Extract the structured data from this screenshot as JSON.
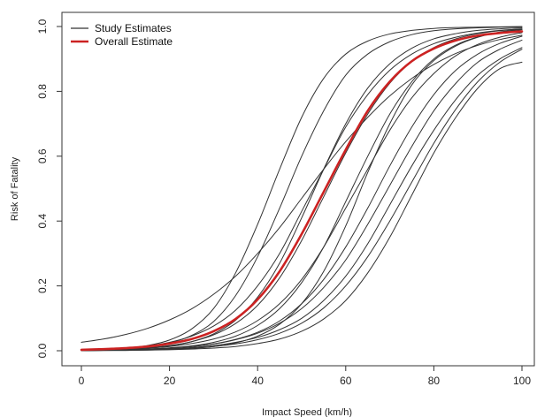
{
  "chart_data": {
    "type": "line",
    "title": "",
    "xlabel": "Impact Speed (km/h)",
    "ylabel": "Risk of Fatality",
    "xlim": [
      0,
      100
    ],
    "ylim": [
      0,
      1
    ],
    "x_ticks": [
      0,
      20,
      40,
      60,
      80,
      100
    ],
    "y_ticks": [
      0.0,
      0.2,
      0.4,
      0.6,
      0.8,
      1.0
    ],
    "x_tick_labels": [
      "0",
      "20",
      "40",
      "60",
      "80",
      "100"
    ],
    "y_tick_labels": [
      "0.0",
      "0.2",
      "0.4",
      "0.6",
      "0.8",
      "1.0"
    ],
    "grid": false,
    "legend": {
      "position": "top-left",
      "entries": [
        {
          "label": "Study Estimates",
          "color": "#333333"
        },
        {
          "label": "Overall Estimate",
          "color": "#cc2222"
        }
      ]
    },
    "x": [
      0,
      5,
      10,
      15,
      20,
      25,
      30,
      35,
      40,
      45,
      50,
      55,
      60,
      65,
      70,
      75,
      80,
      85,
      90,
      95,
      100
    ],
    "series": [
      {
        "values": [
          0.026,
          0.036,
          0.05,
          0.069,
          0.095,
          0.129,
          0.174,
          0.23,
          0.3,
          0.38,
          0.47,
          0.56,
          0.645,
          0.72,
          0.786,
          0.84,
          0.883,
          0.917,
          0.942,
          0.96,
          0.973
        ],
        "color": "#333333",
        "width": 1.0
      },
      {
        "values": [
          0.002,
          0.004,
          0.008,
          0.016,
          0.033,
          0.067,
          0.13,
          0.24,
          0.39,
          0.56,
          0.72,
          0.84,
          0.915,
          0.955,
          0.977,
          0.988,
          0.994,
          0.997,
          0.998,
          0.999,
          1.0
        ],
        "color": "#333333",
        "width": 1.0
      },
      {
        "values": [
          0.002,
          0.003,
          0.006,
          0.012,
          0.024,
          0.047,
          0.09,
          0.17,
          0.29,
          0.44,
          0.6,
          0.74,
          0.85,
          0.915,
          0.953,
          0.975,
          0.987,
          0.993,
          0.996,
          0.998,
          0.999
        ],
        "color": "#333333",
        "width": 1.0
      },
      {
        "values": [
          0.003,
          0.005,
          0.009,
          0.015,
          0.026,
          0.045,
          0.076,
          0.125,
          0.2,
          0.3,
          0.43,
          0.56,
          0.69,
          0.79,
          0.865,
          0.915,
          0.947,
          0.967,
          0.98,
          0.988,
          0.992
        ],
        "color": "#333333",
        "width": 1.0
      },
      {
        "values": [
          0.001,
          0.002,
          0.004,
          0.008,
          0.015,
          0.028,
          0.052,
          0.094,
          0.165,
          0.27,
          0.41,
          0.56,
          0.7,
          0.81,
          0.885,
          0.933,
          0.962,
          0.978,
          0.988,
          0.993,
          0.996
        ],
        "color": "#333333",
        "width": 1.0
      },
      {
        "values": [
          0.002,
          0.003,
          0.005,
          0.008,
          0.013,
          0.022,
          0.036,
          0.058,
          0.093,
          0.145,
          0.22,
          0.32,
          0.44,
          0.56,
          0.68,
          0.78,
          0.855,
          0.91,
          0.945,
          0.967,
          0.981
        ],
        "color": "#333333",
        "width": 1.0
      },
      {
        "values": [
          0.001,
          0.002,
          0.003,
          0.005,
          0.009,
          0.015,
          0.026,
          0.045,
          0.078,
          0.13,
          0.21,
          0.32,
          0.46,
          0.6,
          0.73,
          0.83,
          0.9,
          0.943,
          0.968,
          0.983,
          0.991
        ],
        "color": "#333333",
        "width": 1.0
      },
      {
        "values": [
          0.0,
          0.001,
          0.001,
          0.002,
          0.004,
          0.007,
          0.013,
          0.024,
          0.045,
          0.082,
          0.145,
          0.245,
          0.385,
          0.55,
          0.7,
          0.82,
          0.895,
          0.94,
          0.967,
          0.982,
          0.99
        ],
        "color": "#333333",
        "width": 1.0
      },
      {
        "values": [
          0.001,
          0.002,
          0.003,
          0.005,
          0.008,
          0.013,
          0.021,
          0.034,
          0.054,
          0.085,
          0.13,
          0.195,
          0.28,
          0.39,
          0.51,
          0.63,
          0.74,
          0.825,
          0.89,
          0.93,
          0.958
        ],
        "color": "#333333",
        "width": 1.0
      },
      {
        "values": [
          0.001,
          0.002,
          0.003,
          0.005,
          0.008,
          0.013,
          0.021,
          0.035,
          0.057,
          0.092,
          0.145,
          0.22,
          0.32,
          0.44,
          0.57,
          0.69,
          0.79,
          0.865,
          0.915,
          0.948,
          0.97
        ],
        "color": "#333333",
        "width": 1.0
      },
      {
        "values": [
          0.001,
          0.002,
          0.003,
          0.004,
          0.006,
          0.01,
          0.016,
          0.026,
          0.041,
          0.065,
          0.1,
          0.155,
          0.23,
          0.33,
          0.45,
          0.57,
          0.68,
          0.775,
          0.85,
          0.9,
          0.935
        ],
        "color": "#333333",
        "width": 1.0
      },
      {
        "values": [
          0.0,
          0.001,
          0.002,
          0.003,
          0.005,
          0.008,
          0.013,
          0.021,
          0.034,
          0.054,
          0.085,
          0.132,
          0.2,
          0.29,
          0.4,
          0.52,
          0.64,
          0.745,
          0.83,
          0.89,
          0.93
        ],
        "color": "#333333",
        "width": 1.0
      },
      {
        "values": [
          0.0,
          0.001,
          0.001,
          0.002,
          0.003,
          0.005,
          0.008,
          0.013,
          0.022,
          0.036,
          0.06,
          0.098,
          0.155,
          0.24,
          0.35,
          0.48,
          0.61,
          0.72,
          0.81,
          0.87,
          0.89
        ],
        "color": "#333333",
        "width": 1.0
      },
      {
        "values": [
          0.002,
          0.003,
          0.005,
          0.009,
          0.016,
          0.028,
          0.049,
          0.084,
          0.14,
          0.225,
          0.34,
          0.475,
          0.61,
          0.73,
          0.825,
          0.892,
          0.935,
          0.962,
          0.978,
          0.987,
          0.993
        ],
        "color": "#333333",
        "width": 1.0
      },
      {
        "name": "Overall Estimate",
        "values": [
          0.003,
          0.005,
          0.008,
          0.013,
          0.022,
          0.036,
          0.06,
          0.098,
          0.158,
          0.245,
          0.36,
          0.49,
          0.62,
          0.74,
          0.83,
          0.893,
          0.932,
          0.957,
          0.972,
          0.98,
          0.985
        ],
        "color": "#cc2222",
        "width": 2.6
      }
    ]
  }
}
